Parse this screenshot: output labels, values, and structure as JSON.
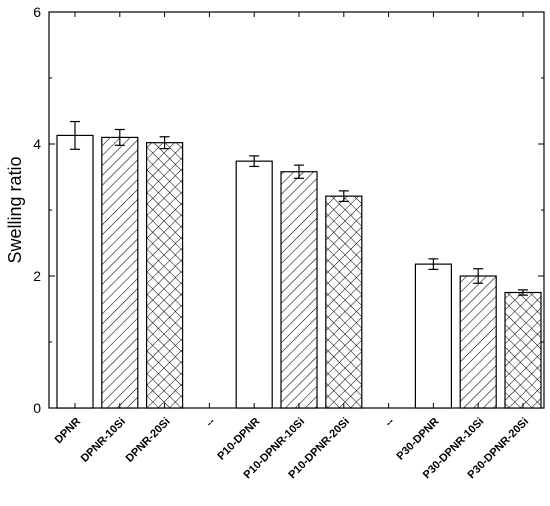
{
  "chart_data": {
    "type": "bar",
    "ylabel": "Swelling ratio",
    "xlabel": "",
    "ylim": [
      0,
      6
    ],
    "y_ticks": [
      "0",
      "2",
      "4",
      "6"
    ],
    "categories": [
      "DPNR",
      "DPNR-10Si",
      "DPNR-20Si",
      "--",
      "P10-DPNR",
      "P10-DPNR-10Si",
      "P10-DPNR-20Si",
      "--",
      "P30-DPNR",
      "P30-DPNR-10Si",
      "P30-DPNR-20Si"
    ],
    "values": [
      4.13,
      4.1,
      4.02,
      null,
      3.74,
      3.58,
      3.21,
      null,
      2.18,
      2.0,
      1.75
    ],
    "errors": [
      0.21,
      0.12,
      0.09,
      null,
      0.08,
      0.1,
      0.08,
      null,
      0.08,
      0.11,
      0.04
    ],
    "fill_patterns": [
      "none",
      "hatch",
      "crosshatch",
      "none",
      "none",
      "hatch",
      "crosshatch",
      "none",
      "none",
      "hatch",
      "crosshatch"
    ],
    "grid": false,
    "colors": {
      "bar_stroke": "#000000",
      "bar_fill": "#ffffff"
    }
  }
}
